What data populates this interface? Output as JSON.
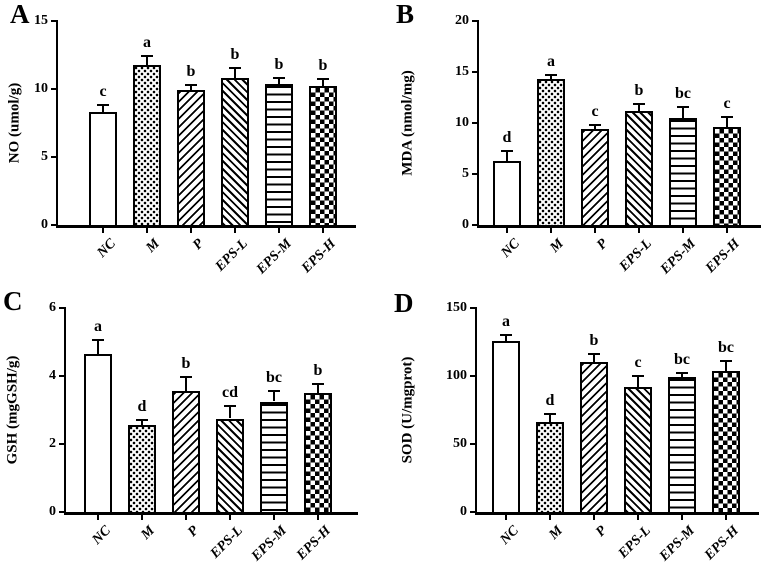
{
  "figure": {
    "background": "#ffffff",
    "ink_color": "#000000",
    "panel_letters": [
      "A",
      "B",
      "C",
      "D"
    ]
  },
  "chart_data": [
    {
      "panel": "A",
      "type": "bar",
      "title": "",
      "ylabel": "NO (umol/g)",
      "xlabel": "",
      "ylim": [
        0,
        15
      ],
      "yticks": [
        0,
        5,
        10,
        15
      ],
      "categories": [
        "NC",
        "M",
        "P",
        "EPS-L",
        "EPS-M",
        "EPS-H"
      ],
      "values": [
        8.3,
        11.8,
        9.9,
        10.8,
        10.4,
        10.2
      ],
      "errors": [
        0.6,
        0.7,
        0.5,
        0.8,
        0.45,
        0.6
      ],
      "sig_letters": [
        "c",
        "a",
        "b",
        "b",
        "b",
        "b"
      ],
      "patterns": [
        "open",
        "dots",
        "diag-up",
        "diag-down",
        "hlines",
        "checker"
      ],
      "grid": false,
      "legend": "none"
    },
    {
      "panel": "B",
      "type": "bar",
      "title": "",
      "ylabel": "MDA (nmol/mg)",
      "xlabel": "",
      "ylim": [
        0,
        20
      ],
      "yticks": [
        0,
        5,
        10,
        15,
        20
      ],
      "categories": [
        "NC",
        "M",
        "P",
        "EPS-L",
        "EPS-M",
        "EPS-H"
      ],
      "values": [
        6.3,
        14.3,
        9.4,
        11.2,
        10.5,
        9.6
      ],
      "errors": [
        1.1,
        0.5,
        0.5,
        0.8,
        1.2,
        1.1
      ],
      "sig_letters": [
        "d",
        "a",
        "c",
        "b",
        "bc",
        "c"
      ],
      "patterns": [
        "open",
        "dots",
        "diag-up",
        "diag-down",
        "hlines",
        "checker"
      ],
      "grid": false,
      "legend": "none"
    },
    {
      "panel": "C",
      "type": "bar",
      "title": "",
      "ylabel": "GSH (mgGSH/g)",
      "xlabel": "",
      "ylim": [
        0,
        6
      ],
      "yticks": [
        0,
        2,
        4,
        6
      ],
      "categories": [
        "NC",
        "M",
        "P",
        "EPS-L",
        "EPS-M",
        "EPS-H"
      ],
      "values": [
        4.65,
        2.55,
        3.55,
        2.75,
        3.25,
        3.5
      ],
      "errors": [
        0.45,
        0.2,
        0.45,
        0.4,
        0.35,
        0.3
      ],
      "sig_letters": [
        "a",
        "d",
        "b",
        "cd",
        "bc",
        "b"
      ],
      "patterns": [
        "open",
        "dots",
        "diag-up",
        "diag-down",
        "hlines",
        "checker"
      ],
      "grid": false,
      "legend": "none"
    },
    {
      "panel": "D",
      "type": "bar",
      "title": "",
      "ylabel": "SOD (U/mgprot)",
      "xlabel": "",
      "ylim": [
        0,
        150
      ],
      "yticks": [
        0,
        50,
        100,
        150
      ],
      "categories": [
        "NC",
        "M",
        "P",
        "EPS-L",
        "EPS-M",
        "EPS-H"
      ],
      "values": [
        126,
        66,
        110,
        92,
        99,
        104
      ],
      "errors": [
        5,
        7,
        7,
        9,
        4,
        8
      ],
      "sig_letters": [
        "a",
        "d",
        "b",
        "c",
        "bc",
        "bc"
      ],
      "patterns": [
        "open",
        "dots",
        "diag-up",
        "diag-down",
        "hlines",
        "checker"
      ],
      "grid": false,
      "legend": "none"
    }
  ]
}
